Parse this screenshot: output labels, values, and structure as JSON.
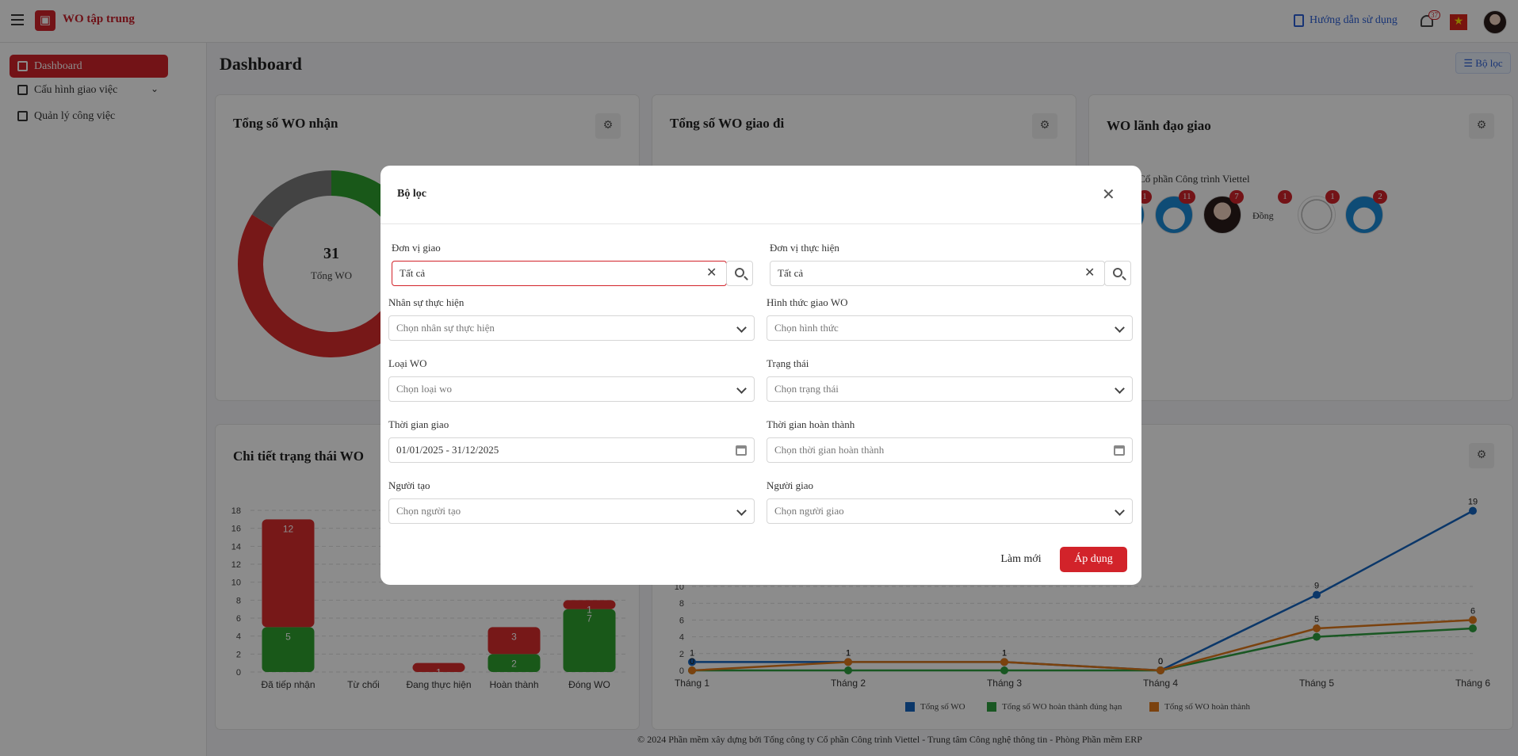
{
  "app": {
    "title": "WO tập trung",
    "help_label": "Hướng dẫn sử dụng",
    "notification_count": "37",
    "footer": "© 2024 Phần mềm xây dựng bởi Tổng công ty Cổ phần Công trình Viettel - Trung tâm Công nghệ thông tin - Phòng Phần mềm ERP"
  },
  "sidebar": {
    "items": [
      {
        "label": "Dashboard",
        "icon": "dashboard-icon"
      },
      {
        "label": "Cấu hình giao việc",
        "icon": "config-icon"
      },
      {
        "label": "Quản lý công việc",
        "icon": "briefcase-icon"
      }
    ]
  },
  "main": {
    "page_title": "Dashboard",
    "filter_button": "Bộ lọc",
    "cards": {
      "received": {
        "title": "Tổng số WO nhận",
        "total_value": "31",
        "total_label": "Tổng WO"
      },
      "sent": {
        "title": "Tổng số WO giao đi"
      },
      "leader": {
        "title": "WO lãnh đạo giao",
        "company": "ông ty Cổ phần Công trình Viettel",
        "alt_text": "Đồng",
        "badges": [
          "1",
          "11",
          "7",
          "1",
          "1",
          "2"
        ]
      },
      "status": {
        "title": "Chi tiết trạng thái WO"
      }
    }
  },
  "chart_data": [
    {
      "type": "bar",
      "title": "Chi tiết trạng thái WO",
      "categories": [
        "Đã tiếp nhận",
        "Từ chối",
        "Đang thực hiện",
        "Hoàn thành",
        "Đóng WO"
      ],
      "series": [
        {
          "values": [
            5,
            0,
            0,
            2,
            7
          ],
          "color": "#2ea02e"
        },
        {
          "values": [
            12,
            0,
            1,
            3,
            1
          ],
          "color": "#d92d2d"
        }
      ],
      "ylim": [
        0,
        18
      ],
      "yticks": [
        0,
        2,
        4,
        6,
        8,
        10,
        12,
        14,
        16,
        18
      ],
      "stacked": true
    },
    {
      "type": "line",
      "x": [
        "Tháng 1",
        "Tháng 2",
        "Tháng 3",
        "Tháng 4",
        "Tháng 5",
        "Tháng 6"
      ],
      "series": [
        {
          "name": "Tổng số WO",
          "values": [
            1,
            1,
            1,
            0,
            9,
            19
          ],
          "color": "#1565c0"
        },
        {
          "name": "Tổng số WO hoàn thành đúng hạn",
          "values": [
            0,
            0,
            0,
            0,
            4,
            5
          ],
          "color": "#2e9e3e"
        },
        {
          "name": "Tổng số WO hoàn thành",
          "values": [
            0,
            1,
            1,
            0,
            5,
            6
          ],
          "color": "#e0781a"
        }
      ],
      "ylim": [
        0,
        20
      ],
      "yticks": [
        0,
        2,
        4,
        6,
        8,
        10
      ],
      "grid": true,
      "legend_position": "bottom"
    },
    {
      "type": "pie",
      "title": "Tổng số WO nhận",
      "note": "donut segments",
      "slices": [
        {
          "value": 11,
          "color": "#2ea02e"
        },
        {
          "value": 15,
          "color": "#d92d2d"
        },
        {
          "value": 5,
          "color": "#7a7a7a"
        }
      ]
    }
  ],
  "modal": {
    "title": "Bộ lọc",
    "fields": {
      "don_vi_giao": {
        "label": "Đơn vị giao",
        "value": "Tất cả"
      },
      "don_vi_thuc_hien": {
        "label": "Đơn vị thực hiện",
        "value": "Tất cả"
      },
      "nhan_su": {
        "label": "Nhân sự thực hiện",
        "placeholder": "Chọn nhân sự thực hiện"
      },
      "hinh_thuc": {
        "label": "Hình thức giao WO",
        "placeholder": "Chọn hình thức"
      },
      "loai_wo": {
        "label": "Loại WO",
        "placeholder": "Chọn loại wo"
      },
      "trang_thai": {
        "label": "Trạng thái",
        "placeholder": "Chọn trạng thái"
      },
      "thoi_gian_giao": {
        "label": "Thời gian giao",
        "value": "01/01/2025 - 31/12/2025"
      },
      "thoi_gian_hoan_thanh": {
        "label": "Thời gian hoàn thành",
        "placeholder": "Chọn thời gian hoàn thành"
      },
      "nguoi_tao": {
        "label": "Người tạo",
        "placeholder": "Chọn người tạo"
      },
      "nguoi_giao": {
        "label": "Người giao",
        "placeholder": "Chọn người giao"
      }
    },
    "reset_label": "Làm mới",
    "apply_label": "Áp dụng"
  }
}
